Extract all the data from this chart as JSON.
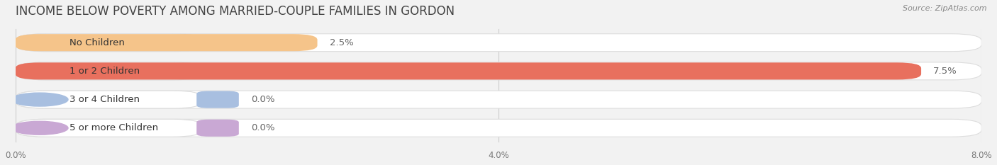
{
  "title": "INCOME BELOW POVERTY AMONG MARRIED-COUPLE FAMILIES IN GORDON",
  "source": "Source: ZipAtlas.com",
  "categories": [
    "No Children",
    "1 or 2 Children",
    "3 or 4 Children",
    "5 or more Children"
  ],
  "values": [
    2.5,
    7.5,
    0.0,
    0.0
  ],
  "bar_colors": [
    "#f5c48a",
    "#e8705e",
    "#a8bfe0",
    "#c9a8d4"
  ],
  "bar_edge_colors": [
    "#e8a84a",
    "#c94a3a",
    "#7a9fc8",
    "#a878bc"
  ],
  "label_pill_colors": [
    "#f5c48a",
    "#e8705e",
    "#a8bfe0",
    "#c9a8d4"
  ],
  "xlim": [
    0,
    8.0
  ],
  "xticks": [
    0.0,
    4.0,
    8.0
  ],
  "xticklabels": [
    "0.0%",
    "4.0%",
    "8.0%"
  ],
  "bar_height": 0.62,
  "background_color": "#f2f2f2",
  "track_color": "#ffffff",
  "track_edge_color": "#dddddd",
  "title_fontsize": 12,
  "label_fontsize": 9.5,
  "value_fontsize": 9.5,
  "value_label_inside_color": "#666666",
  "value_label_outside_color": "#666666"
}
